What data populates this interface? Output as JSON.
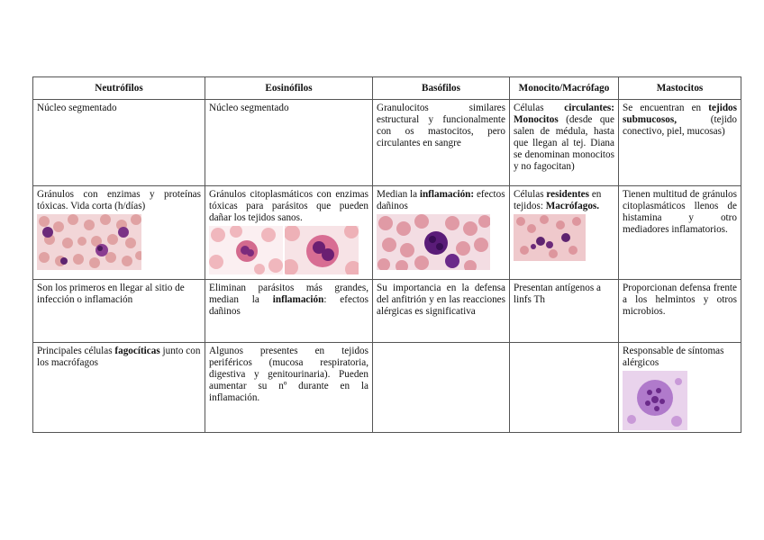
{
  "headers": [
    "Neutrófilos",
    "Eosinófilos",
    "Basófilos",
    "Monocito/Macrófago",
    "Mastocitos"
  ],
  "row1": {
    "neutro": "Núcleo segmentado",
    "eosino": "Núcleo segmentado",
    "baso": "Granulocitos similares estructural y funcionalmente con os mastocitos, pero circulantes en sangre",
    "mono_pre": "Células ",
    "mono_bold1": "circulantes: Monocitos",
    "mono_post": " (desde que salen de médula, hasta que llegan al tej. Diana se denominan monocitos y no fagocitan)",
    "masto_pre": "Se encuentran en ",
    "masto_bold": "tejidos submucosos,",
    "masto_post": " (tejido conectivo, piel, mucosas)"
  },
  "row2": {
    "neutro": "Gránulos con enzimas y proteínas tóxicas. Vida corta (h/días)",
    "eosino": "Gránulos citoplasmáticos con enzimas tóxicas para parásitos que pueden dañar los tejidos sanos.",
    "baso_pre": "Median la ",
    "baso_bold": "inflamación:",
    "baso_post": " efectos dañinos",
    "mono_pre": "Células ",
    "mono_bold1": "residentes",
    "mono_mid": " en tejidos: ",
    "mono_bold2": "Macrófagos.",
    "masto": "Tienen multitud de gránulos citoplasmáticos llenos de histamina y otro mediadores inflamatorios."
  },
  "row3": {
    "neutro": "Son los primeros en llegar al sitio de infección o inflamación",
    "eosino_pre": "Eliminan parásitos más grandes, median la ",
    "eosino_bold": "inflamación",
    "eosino_post": ": efectos dañinos",
    "baso": "Su importancia en la defensa del anfitrión y en las reacciones alérgicas es significativa",
    "mono": "Presentan antígenos a linfs Th",
    "masto": "Proporcionan defensa frente a los helmintos y otros microbios."
  },
  "row4": {
    "neutro_pre": "Principales células ",
    "neutro_bold": "fagocíticas",
    "neutro_post": " junto con los macrófagos",
    "eosino": "Algunos presentes en tejidos periféricos (mucosa respiratoria, digestiva y genitourinaria). Pueden aumentar su nº durante en la inflamación.",
    "baso": "",
    "mono": "",
    "masto": "Responsable de síntomas alérgicos"
  },
  "images": {
    "neutro_blood_smear": "blood-smear-neutrophil",
    "eosino_smear_1": "blood-smear-eosinophil",
    "eosino_smear_2": "eosinophil-closeup",
    "baso_smear": "blood-smear-basophil",
    "mono_smear": "blood-smear-macrophage",
    "masto_smear": "mast-cell-micrograph"
  },
  "colors": {
    "rbc": "#e8a7a0",
    "stain": "#6b2a7a",
    "border": "#555555"
  }
}
